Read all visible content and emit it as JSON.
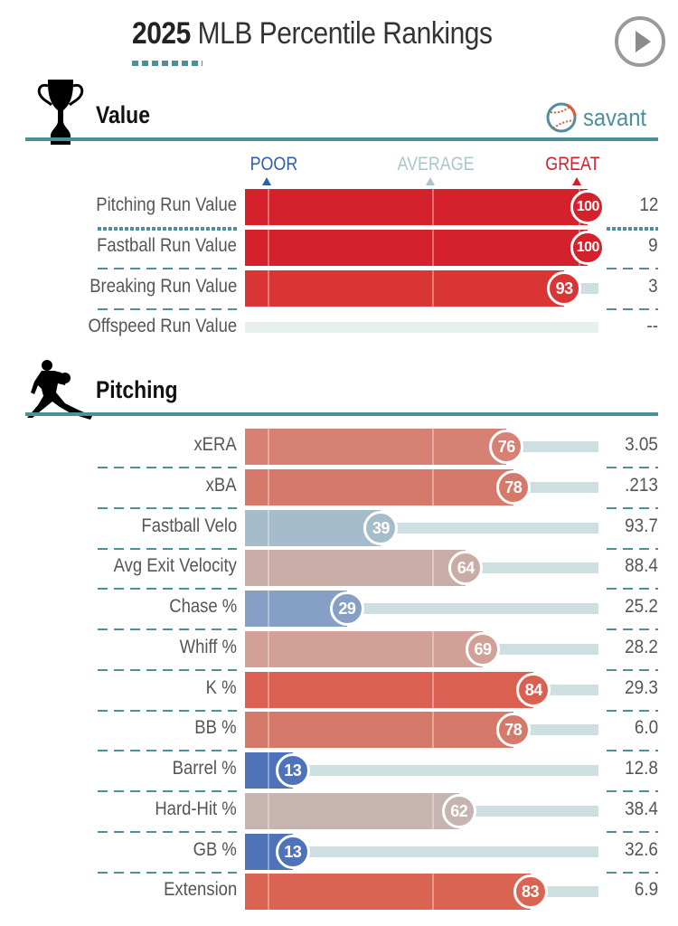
{
  "header": {
    "title_year": "2025",
    "title_rest": " MLB Percentile Rankings",
    "play_button_icon": "play-icon"
  },
  "brand": {
    "name": "savant",
    "icon": "baseball-icon"
  },
  "scale": {
    "poor": "POOR",
    "average": "AVERAGE",
    "great": "GREAT",
    "poor_color": "#2f5da8",
    "average_color": "#a9c7cb",
    "great_color": "#d21f2b"
  },
  "sections": [
    {
      "title": "Value",
      "icon": "trophy-icon",
      "rows": [
        {
          "label": "Pitching Run Value",
          "percentile": 100,
          "value": "12",
          "color": "#d4212c"
        },
        {
          "label": "Fastball Run Value",
          "percentile": 100,
          "value": "9",
          "color": "#d4212c"
        },
        {
          "label": "Breaking Run Value",
          "percentile": 93,
          "value": "3",
          "color": "#d93534"
        },
        {
          "label": "Offspeed Run Value",
          "percentile": null,
          "value": "--",
          "color": null
        }
      ]
    },
    {
      "title": "Pitching",
      "icon": "pitcher-icon",
      "rows": [
        {
          "label": "xERA",
          "percentile": 76,
          "value": "3.05",
          "color": "#d68173"
        },
        {
          "label": "xBA",
          "percentile": 78,
          "value": ".213",
          "color": "#d57a6a"
        },
        {
          "label": "Fastball Velo",
          "percentile": 39,
          "value": "93.7",
          "color": "#a5bccb"
        },
        {
          "label": "Avg Exit Velocity",
          "percentile": 64,
          "value": "88.4",
          "color": "#c9aca6"
        },
        {
          "label": "Chase %",
          "percentile": 29,
          "value": "25.2",
          "color": "#86a0c5"
        },
        {
          "label": "Whiff %",
          "percentile": 69,
          "value": "28.2",
          "color": "#d1a096"
        },
        {
          "label": "K %",
          "percentile": 84,
          "value": "29.3",
          "color": "#da6152"
        },
        {
          "label": "BB %",
          "percentile": 78,
          "value": "6.0",
          "color": "#d57a6a"
        },
        {
          "label": "Barrel %",
          "percentile": 13,
          "value": "12.8",
          "color": "#4e73b8"
        },
        {
          "label": "Hard-Hit %",
          "percentile": 62,
          "value": "38.4",
          "color": "#c5b4b0"
        },
        {
          "label": "GB %",
          "percentile": 13,
          "value": "32.6",
          "color": "#4e73b8"
        },
        {
          "label": "Extension",
          "percentile": 83,
          "value": "6.9",
          "color": "#da6452"
        }
      ]
    }
  ]
}
